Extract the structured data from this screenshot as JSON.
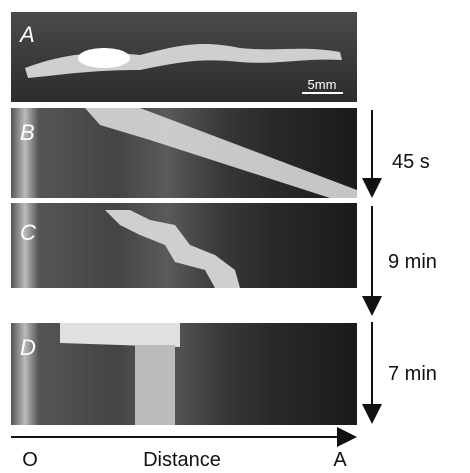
{
  "panels": [
    {
      "label": "A"
    },
    {
      "label": "B",
      "duration": "45 s"
    },
    {
      "label": "C",
      "duration": "9 min"
    },
    {
      "label": "D",
      "duration": "7 min"
    }
  ],
  "scale_bar": "5mm",
  "axis": {
    "start": "O",
    "label": "Distance",
    "end": "A"
  }
}
